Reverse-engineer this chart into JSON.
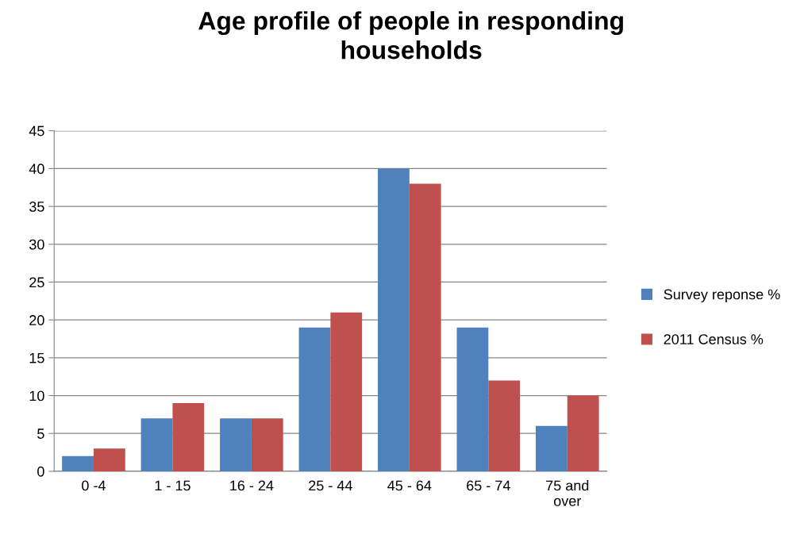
{
  "chart_data": {
    "type": "bar",
    "title": "Age profile of people in responding\nhouseholds",
    "categories": [
      "0 -4",
      "1 - 15",
      "16 - 24",
      "25 - 44",
      "45 - 64",
      "65 - 74",
      "75 and\nover"
    ],
    "series": [
      {
        "name": "Survey reponse %",
        "color": "#4f81bd",
        "values": [
          2,
          7,
          7,
          19,
          40,
          19,
          6
        ]
      },
      {
        "name": "2011 Census %",
        "color": "#c0504d",
        "values": [
          3,
          9,
          7,
          21,
          38,
          12,
          10
        ]
      }
    ],
    "ylim": [
      0,
      45
    ],
    "yticks": [
      0,
      5,
      10,
      15,
      20,
      25,
      30,
      35,
      40,
      45
    ],
    "grid": "y",
    "legend": "right"
  }
}
